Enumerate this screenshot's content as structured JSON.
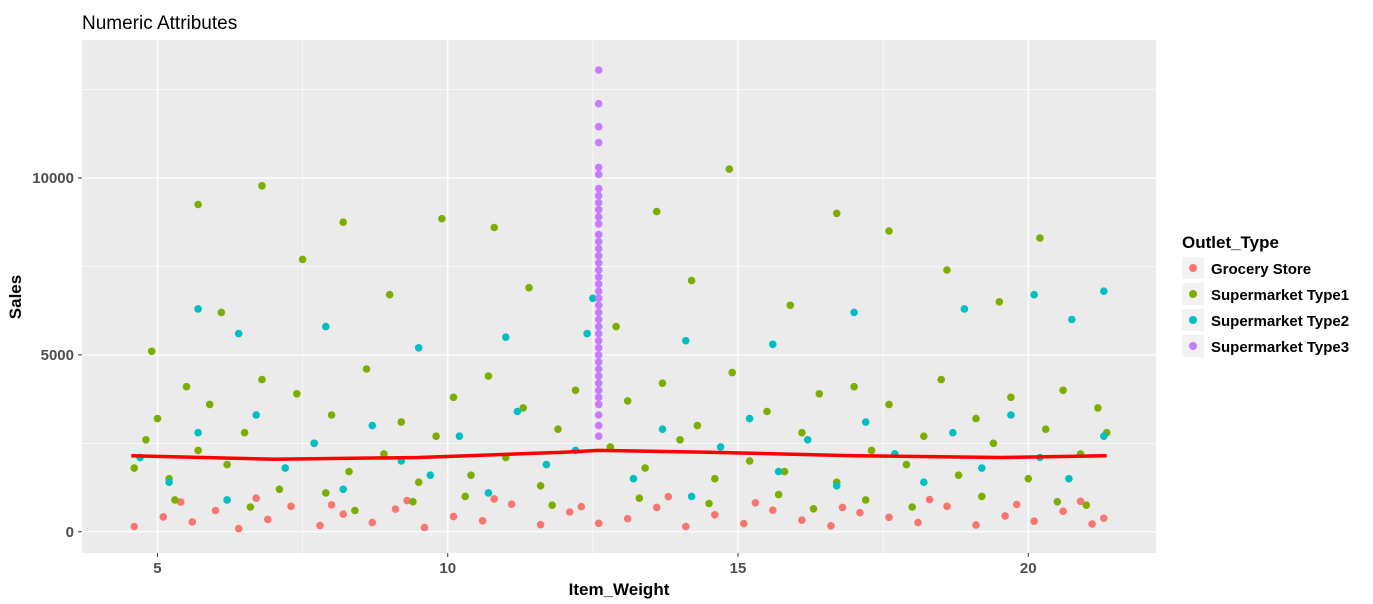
{
  "chart_data": {
    "type": "scatter",
    "title": "Numeric Attributes",
    "xlabel": "Item_Weight",
    "ylabel": "Sales",
    "xlim": [
      3.7,
      22.2
    ],
    "ylim": [
      -600,
      13900
    ],
    "x_ticks": [
      5,
      10,
      15,
      20
    ],
    "y_ticks": [
      0,
      5000,
      10000
    ],
    "x_tick_labels": [
      "5",
      "10",
      "15",
      "20"
    ],
    "y_tick_labels": [
      "0",
      "5000",
      "10000"
    ],
    "x_minor": [
      7.5,
      12.5,
      17.5
    ],
    "y_minor": [
      2500,
      7500,
      12500
    ],
    "grid": true,
    "legend": {
      "title": "Outlet_Type",
      "position": "right",
      "entries": [
        "Grocery Store",
        "Supermarket Type1",
        "Supermarket Type2",
        "Supermarket Type3"
      ]
    },
    "colors": {
      "Grocery Store": "#F8766D",
      "Supermarket Type1": "#7CAE00",
      "Supermarket Type2": "#00BFC4",
      "Supermarket Type3": "#C77CFF",
      "trend": "#FF0000",
      "panel": "#EBEBEB",
      "grid": "#FFFFFF"
    },
    "x_range_data": [
      4.55,
      21.35
    ],
    "series": [
      {
        "name": "Grocery Store",
        "x": [
          4.6,
          5.1,
          5.6,
          6.0,
          6.4,
          6.9,
          7.3,
          7.8,
          8.2,
          8.7,
          9.1,
          9.6,
          10.1,
          10.6,
          11.1,
          11.6,
          12.1,
          12.6,
          13.1,
          13.6,
          14.1,
          14.6,
          15.1,
          15.6,
          16.1,
          16.6,
          17.1,
          17.6,
          18.1,
          18.6,
          19.1,
          19.6,
          20.1,
          20.6,
          21.1,
          21.3,
          5.4,
          6.7,
          8.0,
          9.3,
          10.8,
          12.3,
          13.8,
          15.3,
          16.8,
          18.3,
          19.8,
          20.9
        ],
        "y": [
          150,
          420,
          280,
          600,
          90,
          350,
          720,
          180,
          500,
          260,
          640,
          120,
          430,
          310,
          780,
          200,
          560,
          240,
          370,
          690,
          150,
          480,
          230,
          610,
          330,
          170,
          540,
          410,
          260,
          720,
          190,
          450,
          300,
          580,
          220,
          380,
          840,
          950,
          760,
          880,
          930,
          710,
          990,
          820,
          690,
          910,
          770,
          860
        ]
      },
      {
        "name": "Supermarket Type1",
        "x": [
          4.6,
          4.8,
          5.0,
          5.2,
          5.5,
          5.7,
          5.9,
          6.2,
          6.5,
          6.8,
          7.1,
          7.4,
          7.7,
          8.0,
          8.3,
          8.6,
          8.9,
          9.2,
          9.5,
          9.8,
          10.1,
          10.4,
          10.7,
          11.0,
          11.3,
          11.6,
          11.9,
          12.2,
          12.8,
          13.1,
          13.4,
          13.7,
          14.0,
          14.3,
          14.6,
          14.9,
          15.2,
          15.5,
          15.8,
          16.1,
          16.4,
          16.7,
          17.0,
          17.3,
          17.6,
          17.9,
          18.2,
          18.5,
          18.8,
          19.1,
          19.4,
          19.7,
          20.0,
          20.3,
          20.6,
          20.9,
          21.2,
          21.35,
          5.7,
          6.8,
          8.2,
          9.9,
          10.8,
          13.6,
          14.85,
          16.7,
          17.6,
          20.2,
          4.9,
          6.1,
          7.5,
          9.0,
          11.4,
          12.9,
          14.2,
          15.9,
          18.6,
          19.5,
          5.3,
          6.6,
          7.9,
          8.4,
          9.4,
          10.3,
          11.8,
          13.3,
          14.5,
          15.7,
          16.3,
          17.2,
          18.0,
          19.2,
          20.5,
          21.0
        ],
        "y": [
          1800,
          2600,
          3200,
          1500,
          4100,
          2300,
          3600,
          1900,
          2800,
          4300,
          1200,
          3900,
          2500,
          3300,
          1700,
          4600,
          2200,
          3100,
          1400,
          2700,
          3800,
          1600,
          4400,
          2100,
          3500,
          1300,
          2900,
          4000,
          2400,
          3700,
          1800,
          4200,
          2600,
          3000,
          1500,
          4500,
          2000,
          3400,
          1700,
          2800,
          3900,
          1400,
          4100,
          2300,
          3600,
          1900,
          2700,
          4300,
          1600,
          3200,
          2500,
          3800,
          1500,
          2900,
          4000,
          2200,
          3500,
          2800,
          9250,
          9780,
          8750,
          8850,
          8600,
          9050,
          10250,
          9000,
          8500,
          8300,
          5100,
          6200,
          7700,
          6700,
          6900,
          5800,
          7100,
          6400,
          7400,
          6500,
          900,
          700,
          1100,
          600,
          850,
          1000,
          750,
          950,
          800,
          1050,
          650,
          900,
          700,
          1000,
          850,
          750
        ]
      },
      {
        "name": "Supermarket Type2",
        "x": [
          4.7,
          5.2,
          5.7,
          6.2,
          6.7,
          7.2,
          7.7,
          8.2,
          8.7,
          9.2,
          9.7,
          10.2,
          10.7,
          11.2,
          11.7,
          12.2,
          12.5,
          13.2,
          13.7,
          14.2,
          14.7,
          15.2,
          15.7,
          16.2,
          16.7,
          17.2,
          17.7,
          18.2,
          18.7,
          19.2,
          19.7,
          20.2,
          20.7,
          21.3,
          5.7,
          6.4,
          7.9,
          9.5,
          11.0,
          12.4,
          14.1,
          15.6,
          17.0,
          18.9,
          20.1,
          20.75,
          21.3
        ],
        "y": [
          2100,
          1400,
          2800,
          900,
          3300,
          1800,
          2500,
          1200,
          3000,
          2000,
          1600,
          2700,
          1100,
          3400,
          1900,
          2300,
          6600,
          1500,
          2900,
          1000,
          2400,
          3200,
          1700,
          2600,
          1300,
          3100,
          2200,
          1400,
          2800,
          1800,
          3300,
          2100,
          1500,
          2700,
          6300,
          5600,
          5800,
          5200,
          5500,
          5600,
          5400,
          5300,
          6200,
          6300,
          6700,
          6000,
          6800
        ]
      },
      {
        "name": "Supermarket Type3",
        "x": [
          12.6,
          12.6,
          12.6,
          12.6,
          12.6,
          12.6,
          12.6,
          12.6,
          12.6,
          12.6,
          12.6,
          12.6,
          12.6,
          12.6,
          12.6,
          12.6,
          12.6,
          12.6,
          12.6,
          12.6,
          12.6,
          12.6,
          12.6,
          12.6,
          12.6,
          12.6,
          12.6,
          12.6,
          12.6,
          12.6,
          12.6,
          12.6,
          12.6,
          12.6,
          12.6,
          12.6,
          12.6,
          12.6,
          12.6,
          12.6
        ],
        "y": [
          13050,
          12100,
          11450,
          11000,
          10300,
          10100,
          9700,
          9500,
          9300,
          9100,
          8900,
          8700,
          8400,
          8200,
          8000,
          7800,
          7600,
          7400,
          7200,
          7000,
          6800,
          6600,
          6400,
          6200,
          6000,
          5800,
          5600,
          5400,
          5200,
          5000,
          4800,
          4600,
          4400,
          4200,
          4000,
          3800,
          3600,
          3300,
          3000,
          2700
        ]
      }
    ],
    "trend_line": {
      "x": [
        4.55,
        7.0,
        9.5,
        12.0,
        12.6,
        14.5,
        17.0,
        19.5,
        21.35
      ],
      "y": [
        2150,
        2050,
        2100,
        2250,
        2300,
        2250,
        2150,
        2100,
        2150
      ]
    }
  }
}
